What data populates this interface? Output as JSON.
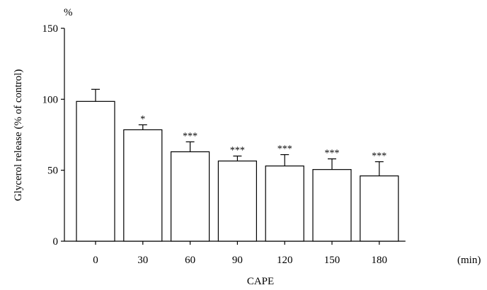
{
  "chart_data": {
    "type": "bar",
    "categories": [
      "0",
      "30",
      "60",
      "90",
      "120",
      "150",
      "180"
    ],
    "values": [
      98.5,
      78.5,
      63,
      56.5,
      53,
      50.5,
      46
    ],
    "errors": [
      8.5,
      3.5,
      7,
      3.5,
      8,
      7.5,
      10
    ],
    "significance": [
      "",
      "*",
      "***",
      "***",
      "***",
      "***",
      "***"
    ],
    "xlabel": "CAPE",
    "x_unit": "(min)",
    "ylabel": "Glycerol release (% of control)",
    "y_unit": "%",
    "ylim": [
      0,
      150
    ],
    "yticks": [
      0,
      50,
      100,
      150
    ],
    "grid": false,
    "bar_color": "#ffffff",
    "edge_color": "#000000"
  }
}
